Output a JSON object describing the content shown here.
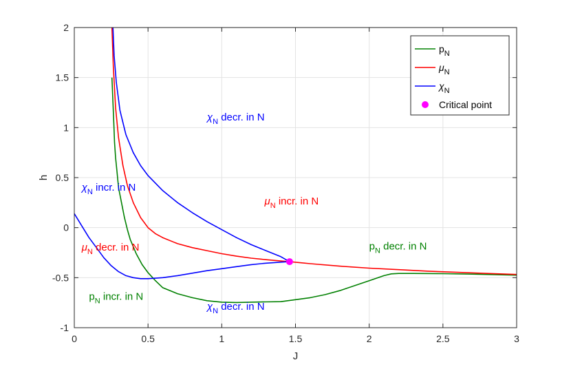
{
  "chart_data": {
    "type": "line",
    "title": "",
    "xlabel": "J",
    "ylabel": "h",
    "xlim": [
      0,
      3
    ],
    "ylim": [
      -1,
      2
    ],
    "xticks": [
      0,
      0.5,
      1,
      1.5,
      2,
      2.5,
      3
    ],
    "yticks": [
      -1,
      -0.5,
      0,
      0.5,
      1,
      1.5,
      2
    ],
    "xtick_labels": [
      "0",
      "0.5",
      "1",
      "1.5",
      "2",
      "2.5",
      "3"
    ],
    "ytick_labels": [
      "-1",
      "-0.5",
      "0",
      "0.5",
      "1",
      "1.5",
      "2"
    ],
    "grid": true,
    "legend_position": "top-right",
    "series": [
      {
        "name": "p_N",
        "label_main": "p",
        "label_sub": "N",
        "label_italic": false,
        "color": "#008000",
        "x": [
          0.255,
          0.262,
          0.268,
          0.273,
          0.28,
          0.29,
          0.3,
          0.32,
          0.34,
          0.36,
          0.38,
          0.42,
          0.46,
          0.5,
          0.55,
          0.6,
          0.7,
          0.8,
          0.9,
          1.0,
          1.1,
          1.2,
          1.3,
          1.4,
          1.5,
          1.6,
          1.7,
          1.8,
          1.9,
          2.0,
          2.1,
          2.15,
          2.2,
          2.3,
          2.5,
          2.7,
          3.0
        ],
        "y": [
          1.5,
          1.25,
          1.05,
          0.85,
          0.7,
          0.55,
          0.4,
          0.25,
          0.1,
          -0.02,
          -0.12,
          -0.26,
          -0.37,
          -0.45,
          -0.53,
          -0.6,
          -0.66,
          -0.7,
          -0.73,
          -0.745,
          -0.748,
          -0.745,
          -0.742,
          -0.74,
          -0.72,
          -0.7,
          -0.67,
          -0.63,
          -0.58,
          -0.53,
          -0.48,
          -0.462,
          -0.458,
          -0.458,
          -0.46,
          -0.465,
          -0.475
        ]
      },
      {
        "name": "mu_N",
        "label_main": "μ",
        "label_sub": "N",
        "label_italic": true,
        "color": "#ff0000",
        "x": [
          0.255,
          0.265,
          0.28,
          0.3,
          0.33,
          0.36,
          0.4,
          0.45,
          0.5,
          0.55,
          0.6,
          0.7,
          0.8,
          0.9,
          1.0,
          1.1,
          1.2,
          1.3,
          1.4,
          1.46,
          1.6,
          1.8,
          2.0,
          2.2,
          2.4,
          2.6,
          2.8,
          3.0
        ],
        "y": [
          2.0,
          1.6,
          1.2,
          0.9,
          0.62,
          0.42,
          0.25,
          0.1,
          0.0,
          -0.06,
          -0.1,
          -0.16,
          -0.2,
          -0.23,
          -0.26,
          -0.285,
          -0.305,
          -0.32,
          -0.333,
          -0.34,
          -0.36,
          -0.385,
          -0.405,
          -0.42,
          -0.435,
          -0.447,
          -0.458,
          -0.468
        ]
      },
      {
        "name": "chi_N_upper",
        "label_main": "χ",
        "label_sub": "N",
        "label_italic": true,
        "color": "#0000ff",
        "x": [
          0.262,
          0.27,
          0.285,
          0.31,
          0.35,
          0.4,
          0.45,
          0.5,
          0.6,
          0.7,
          0.8,
          0.9,
          1.0,
          1.1,
          1.2,
          1.3,
          1.4,
          1.46
        ],
        "y": [
          2.0,
          1.72,
          1.45,
          1.17,
          0.93,
          0.75,
          0.62,
          0.52,
          0.37,
          0.25,
          0.15,
          0.06,
          -0.02,
          -0.1,
          -0.17,
          -0.23,
          -0.29,
          -0.34
        ]
      },
      {
        "name": "chi_N_lower",
        "label_main": "χ",
        "label_sub": "N",
        "label_italic": true,
        "color": "#0000ff",
        "x": [
          0.0,
          0.05,
          0.1,
          0.15,
          0.2,
          0.25,
          0.3,
          0.35,
          0.4,
          0.45,
          0.5,
          0.6,
          0.7,
          0.8,
          0.9,
          1.0,
          1.1,
          1.2,
          1.3,
          1.4,
          1.46
        ],
        "y": [
          0.14,
          0.02,
          -0.1,
          -0.2,
          -0.3,
          -0.38,
          -0.44,
          -0.48,
          -0.5,
          -0.51,
          -0.51,
          -0.5,
          -0.48,
          -0.455,
          -0.43,
          -0.41,
          -0.39,
          -0.37,
          -0.355,
          -0.345,
          -0.34
        ]
      }
    ],
    "critical_point": {
      "name": "Critical point",
      "x": 1.46,
      "y": -0.34,
      "color": "#ff00ff"
    },
    "legend": [
      {
        "main": "p",
        "sub": "N",
        "italic": false,
        "color": "#008000",
        "kind": "line"
      },
      {
        "main": "μ",
        "sub": "N",
        "italic": true,
        "color": "#ff0000",
        "kind": "line"
      },
      {
        "main": "χ",
        "sub": "N",
        "italic": true,
        "color": "#0000ff",
        "kind": "line"
      },
      {
        "main": "Critical point",
        "sub": "",
        "italic": false,
        "color": "#ff00ff",
        "kind": "marker"
      }
    ],
    "annotations": [
      {
        "main": "χ",
        "sub": "N",
        "rest": " decr. in N",
        "italic": true,
        "color": "#0000ff",
        "x": 0.9,
        "y": 1.07
      },
      {
        "main": "χ",
        "sub": "N",
        "rest": " incr. in N",
        "italic": true,
        "color": "#0000ff",
        "x": 0.05,
        "y": 0.37
      },
      {
        "main": "μ",
        "sub": "N",
        "rest": " incr. in N",
        "italic": true,
        "color": "#ff0000",
        "x": 1.29,
        "y": 0.23
      },
      {
        "main": "μ",
        "sub": "N",
        "rest": " decr. in N",
        "italic": true,
        "color": "#ff0000",
        "x": 0.05,
        "y": -0.23
      },
      {
        "main": "p",
        "sub": "N",
        "rest": " decr. in N",
        "italic": false,
        "color": "#008000",
        "x": 2.0,
        "y": -0.22
      },
      {
        "main": "p",
        "sub": "N",
        "rest": " incr. in N",
        "italic": false,
        "color": "#008000",
        "x": 0.1,
        "y": -0.72
      },
      {
        "main": "χ",
        "sub": "N",
        "rest": " decr. in N",
        "italic": true,
        "color": "#0000ff",
        "x": 0.9,
        "y": -0.82
      }
    ]
  }
}
